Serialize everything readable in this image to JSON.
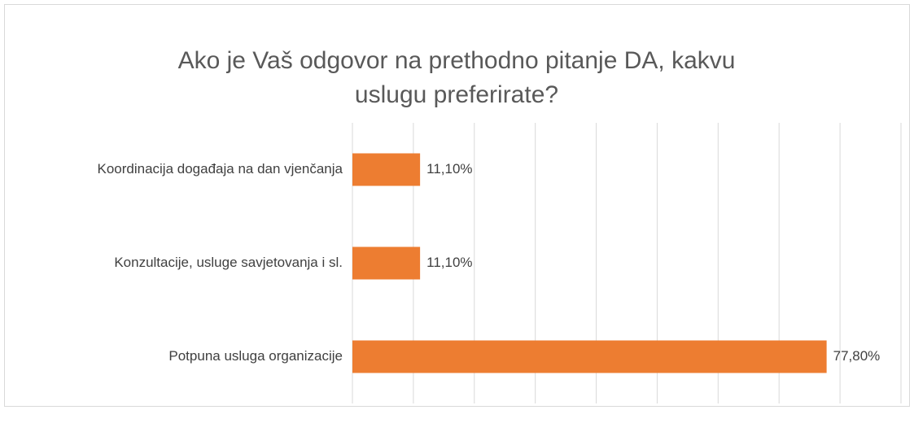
{
  "chart_data": {
    "type": "bar",
    "orientation": "horizontal",
    "title": "Ako je Vaš odgovor na prethodno pitanje DA, kakvu uslugu preferirate?",
    "categories": [
      "Koordinacija događaja na dan vjenčanja",
      "Konzultacije, usluge savjetovanja i sl.",
      "Potpuna usluga organizacije"
    ],
    "values": [
      11.1,
      11.1,
      77.8
    ],
    "value_labels": [
      "11,10%",
      "11,10%",
      "77,80%"
    ],
    "color": "#ed7d31",
    "xlim": [
      0,
      90
    ],
    "xticks": [
      0,
      10,
      20,
      30,
      40,
      50,
      60,
      70,
      80,
      90
    ],
    "grid": true
  }
}
